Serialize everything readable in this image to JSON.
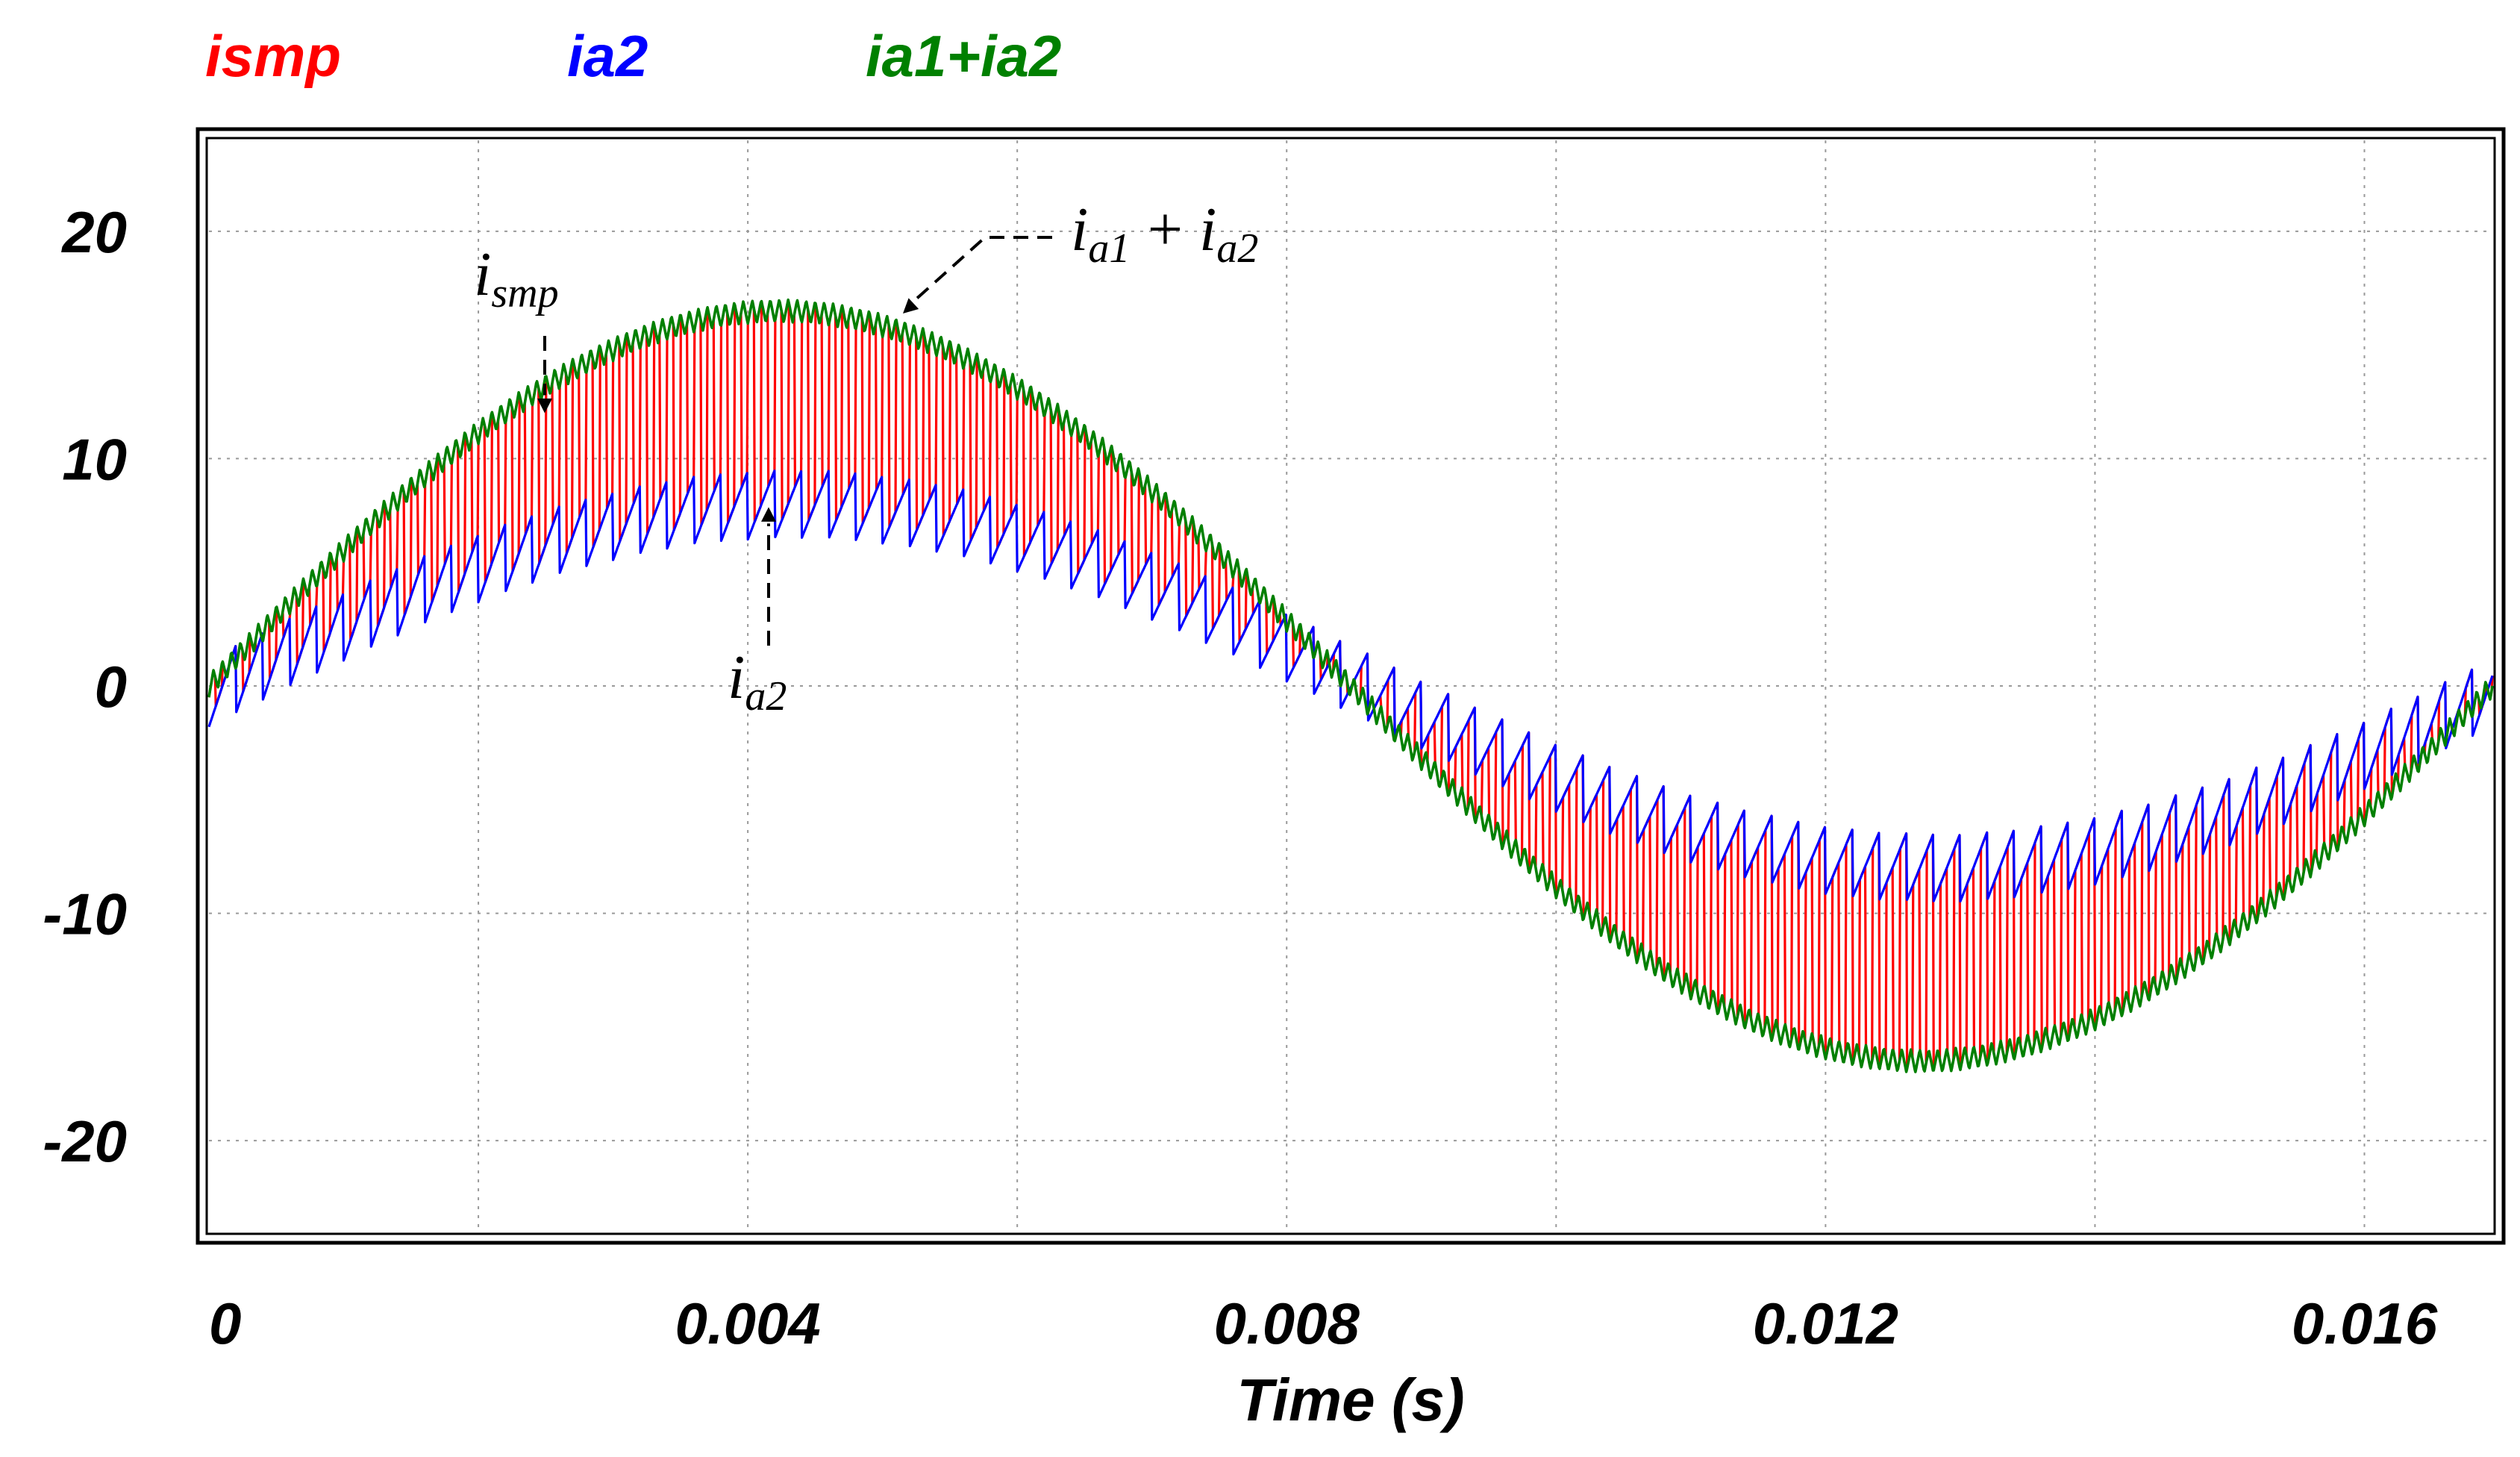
{
  "chart_data": {
    "type": "line",
    "title": "",
    "xlabel": "Time (s)",
    "ylabel": "",
    "xlim": [
      0,
      0.01695
    ],
    "ylim": [
      -24,
      24
    ],
    "xticks": [
      0,
      0.004,
      0.008,
      0.012,
      0.016
    ],
    "xtick_labels": [
      "0",
      "0.004",
      "0.008",
      "0.012",
      "0.016"
    ],
    "yticks": [
      20,
      10,
      0,
      -10,
      -20
    ],
    "ytick_labels": [
      "20",
      "10",
      "0",
      "-10",
      "-20"
    ],
    "grid": true,
    "legend_position": "top-left",
    "series": [
      {
        "name": "ismp",
        "color": "#ff0000",
        "description": "switched current toggling between ia2 and ia1+ia2",
        "fundamental_frequency_hz": 59,
        "envelope_upper_peak": 16.5,
        "envelope_lower_peak": 8.0
      },
      {
        "name": "ia2",
        "color": "#0000ff",
        "fundamental_frequency_hz": 59,
        "amplitude": 8.0,
        "ripple_amplitude": 1.5
      },
      {
        "name": "ia1+ia2",
        "color": "#008000",
        "fundamental_frequency_hz": 59,
        "amplitude": 16.5,
        "ripple_amplitude": 0.5
      }
    ],
    "legend": [
      "ismp",
      "ia2",
      "ia1+ia2"
    ],
    "annotations": [
      {
        "text": "i",
        "subscript": "smp",
        "target_series": "ismp",
        "at_x": 0.0025,
        "at_y": 12
      },
      {
        "text": "i",
        "subscript": "a2",
        "target_series": "ia2",
        "at_x": 0.0042,
        "at_y": 8
      },
      {
        "text": "i",
        "subscript": "a1",
        "plus": "+",
        "text2": "i",
        "subscript2": "a2",
        "target_series": "ia1+ia2",
        "at_x": 0.0052,
        "at_y": 16.5
      }
    ]
  }
}
